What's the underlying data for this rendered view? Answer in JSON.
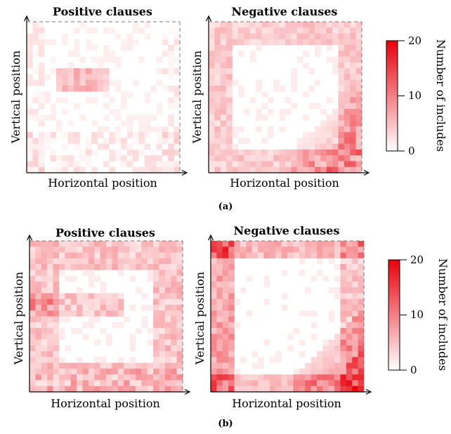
{
  "chart_data": [
    {
      "type": "heatmap",
      "panel": "(a)",
      "title": "Positive clauses",
      "xlabel": "Horizontal position",
      "ylabel": "Vertical position",
      "grid_size": 26,
      "value_range": [
        0,
        20
      ],
      "hotspots": [
        "light horizontal band left of center",
        "light band along bottom edge"
      ]
    },
    {
      "type": "heatmap",
      "panel": "(a)",
      "title": "Negative clauses",
      "xlabel": "Horizontal position",
      "ylabel": "Vertical position",
      "grid_size": 26,
      "value_range": [
        0,
        20
      ],
      "hotspots": [
        "frame along all edges",
        "dense wedge in lower-right"
      ]
    },
    {
      "type": "heatmap",
      "panel": "(b)",
      "title": "Positive clauses",
      "xlabel": "Horizontal position",
      "ylabel": "Vertical position",
      "grid_size": 26,
      "value_range": [
        0,
        20
      ],
      "hotspots": [
        "frame along all edges",
        "horizontal band through left-center",
        "dense bottom edge"
      ]
    },
    {
      "type": "heatmap",
      "panel": "(b)",
      "title": "Negative clauses",
      "xlabel": "Horizontal position",
      "ylabel": "Vertical position",
      "grid_size": 26,
      "value_range": [
        0,
        20
      ],
      "hotspots": [
        "dense left and top edges",
        "dense wedge in lower-right"
      ]
    }
  ],
  "colorbar": {
    "label": "Number of includes",
    "ticks": [
      "0",
      "10",
      "20"
    ],
    "color_low": "#ffffff",
    "color_high": "#e8000b"
  },
  "subcaptions": [
    "(a)",
    "(b)"
  ]
}
